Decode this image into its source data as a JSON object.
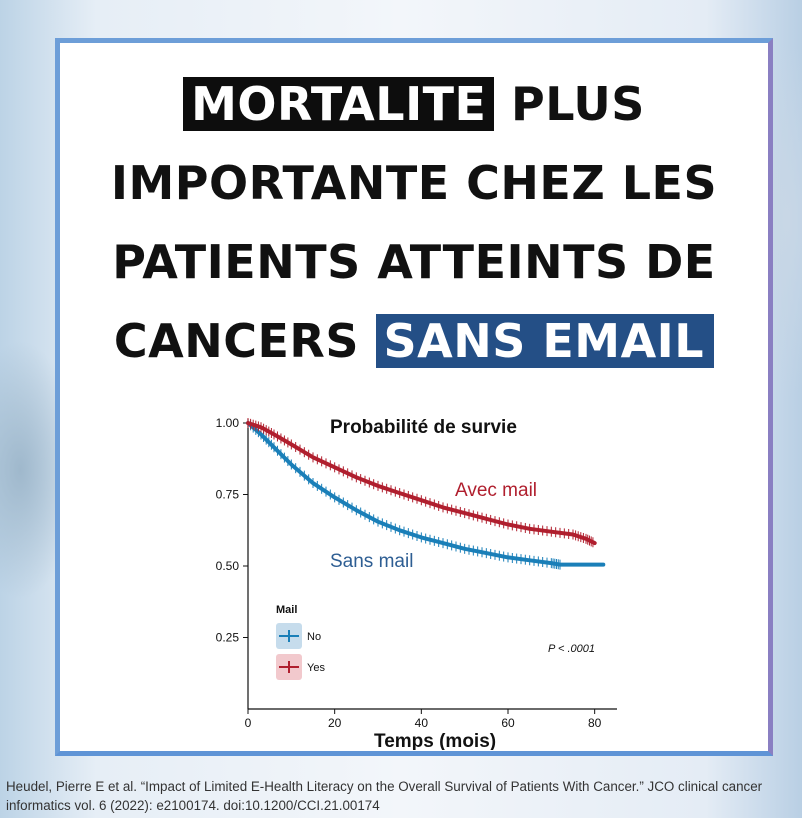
{
  "headline": {
    "part1": "MORTALITE",
    "part2": " PLUS IMPORTANTE CHEZ LES PATIENTS ATTEINTS DE CANCERS ",
    "part3": "SANS EMAIL"
  },
  "colors": {
    "highlight_dark": "#0d0d0d",
    "highlight_blue": "#244f86",
    "series_no": "#1a7fb8",
    "series_yes": "#b01f2e",
    "label_no": "#2e5e93",
    "label_yes": "#b01f2e"
  },
  "chart_data": {
    "type": "line",
    "title": "Probabilité de survie",
    "xlabel": "Temps (mois)",
    "ylabel": "",
    "xlim": [
      0,
      84
    ],
    "ylim": [
      0,
      1
    ],
    "x_ticks": [
      0,
      20,
      40,
      60,
      80
    ],
    "y_ticks": [
      0.25,
      0.5,
      0.75,
      1.0
    ],
    "y_tick_labels": [
      "0.25",
      "0.50",
      "0.75",
      "1.00"
    ],
    "legend_title": "Mail",
    "legend_position": "bottom-left",
    "p_value": "P < .0001",
    "series": [
      {
        "name": "No",
        "annotation": "Sans mail",
        "x": [
          0,
          3,
          6,
          10,
          15,
          20,
          25,
          30,
          35,
          40,
          45,
          50,
          55,
          60,
          65,
          70,
          72,
          82
        ],
        "y": [
          1.0,
          0.96,
          0.915,
          0.855,
          0.79,
          0.74,
          0.695,
          0.655,
          0.625,
          0.6,
          0.58,
          0.56,
          0.545,
          0.53,
          0.52,
          0.51,
          0.505,
          0.505
        ]
      },
      {
        "name": "Yes",
        "annotation": "Avec mail",
        "x": [
          0,
          3,
          6,
          10,
          15,
          20,
          25,
          30,
          35,
          40,
          45,
          50,
          55,
          60,
          65,
          70,
          75,
          78,
          80
        ],
        "y": [
          1.0,
          0.985,
          0.96,
          0.925,
          0.88,
          0.845,
          0.81,
          0.78,
          0.755,
          0.73,
          0.705,
          0.685,
          0.665,
          0.645,
          0.63,
          0.62,
          0.61,
          0.595,
          0.58
        ]
      }
    ]
  },
  "citation": {
    "text": "Heudel, Pierre E et al. “Impact of Limited E-Health Literacy on the Overall Survival of Patients With Cancer.” JCO clinical cancer informatics vol. 6 (2022): e2100174. doi:10.1200/CCI.21.00174"
  }
}
